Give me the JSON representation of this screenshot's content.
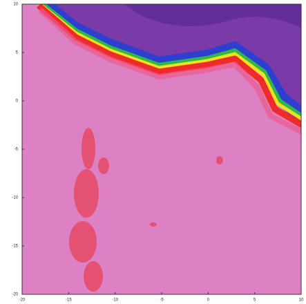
{
  "chart_data": {
    "type": "map",
    "xlim": [
      -20,
      10
    ],
    "xticks": [
      -20,
      -15,
      -10,
      -5,
      0,
      5,
      10
    ],
    "ylim": [
      -20,
      10
    ],
    "yticks": [
      -20,
      -15,
      -10,
      -5,
      0,
      5,
      10
    ]
  }
}
